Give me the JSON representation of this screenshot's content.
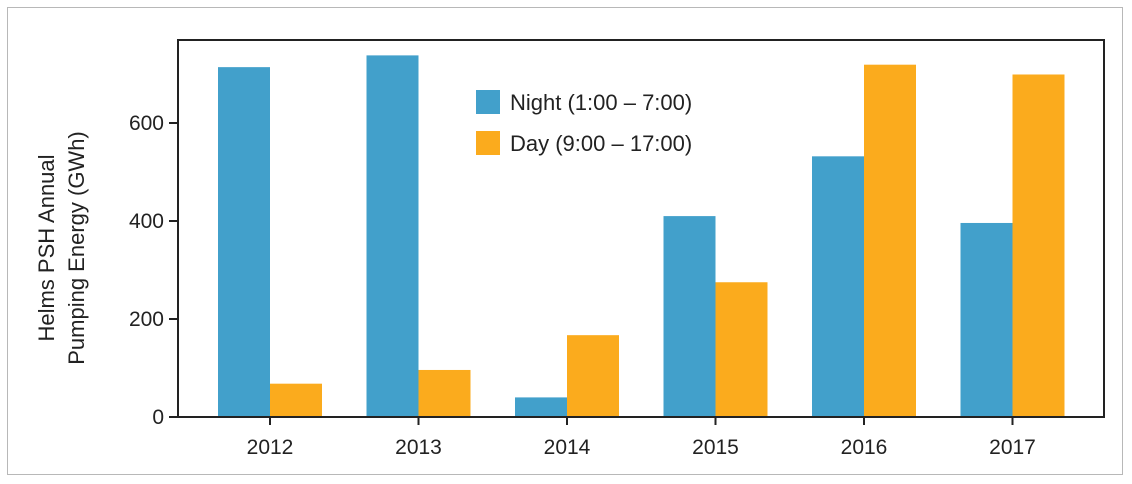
{
  "chart_data": {
    "type": "bar",
    "categories": [
      "2012",
      "2013",
      "2014",
      "2015",
      "2016",
      "2017"
    ],
    "series": [
      {
        "name": "Night (1:00 – 7:00)",
        "color": "#42a0cb",
        "values": [
          714,
          738,
          40,
          410,
          532,
          396
        ]
      },
      {
        "name": "Day (9:00 – 17:00)",
        "color": "#fbab1d",
        "values": [
          68,
          96,
          167,
          275,
          719,
          699
        ]
      }
    ],
    "ylabel_lines": [
      "Helms PSH Annual",
      "Pumping Energy (GWh)"
    ],
    "ylim": [
      0,
      800
    ],
    "yticks": [
      0,
      200,
      400,
      600
    ],
    "grid": false,
    "legend_position": "top-center"
  }
}
